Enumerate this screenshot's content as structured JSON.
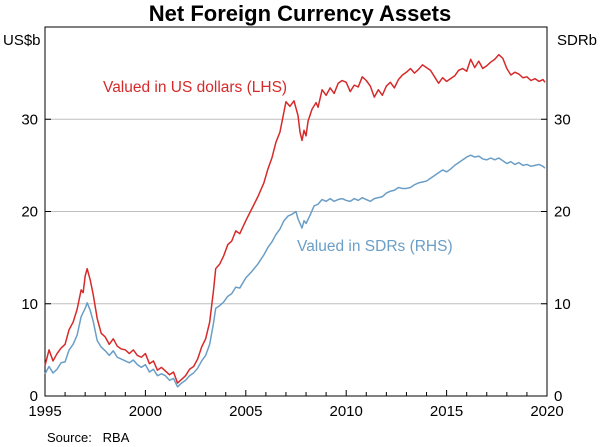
{
  "chart_data": {
    "type": "line",
    "title": "Net Foreign Currency Assets",
    "left_unit": "US$b",
    "right_unit": "SDRb",
    "source": "Source:   RBA",
    "x_range": [
      1995,
      2020
    ],
    "x_ticks": [
      1995,
      2000,
      2005,
      2010,
      2015,
      2020
    ],
    "y_left_range": [
      0,
      40
    ],
    "y_left_ticks": [
      0,
      10,
      20,
      30
    ],
    "y_right_range": [
      0,
      40
    ],
    "y_right_ticks": [
      0,
      10,
      20,
      30
    ],
    "grid": "horizontal",
    "colors": {
      "usd": "#d62a2a",
      "sdr": "#6a9ec7",
      "grid": "#bfbfbf"
    },
    "series": [
      {
        "name": "Valued in US dollars (LHS)",
        "axis": "left",
        "color": "#d62a2a",
        "points": [
          [
            1995.0,
            3.3
          ],
          [
            1995.2,
            5.0
          ],
          [
            1995.4,
            3.8
          ],
          [
            1995.6,
            4.6
          ],
          [
            1995.8,
            5.2
          ],
          [
            1996.0,
            5.6
          ],
          [
            1996.2,
            7.2
          ],
          [
            1996.4,
            8.0
          ],
          [
            1996.6,
            9.4
          ],
          [
            1996.8,
            11.5
          ],
          [
            1996.9,
            11.2
          ],
          [
            1997.0,
            13.0
          ],
          [
            1997.1,
            13.8
          ],
          [
            1997.25,
            12.6
          ],
          [
            1997.4,
            11.0
          ],
          [
            1997.6,
            8.4
          ],
          [
            1997.8,
            6.8
          ],
          [
            1998.0,
            6.4
          ],
          [
            1998.2,
            5.6
          ],
          [
            1998.4,
            6.2
          ],
          [
            1998.6,
            5.4
          ],
          [
            1998.8,
            5.1
          ],
          [
            1999.0,
            5.0
          ],
          [
            1999.2,
            4.6
          ],
          [
            1999.4,
            5.0
          ],
          [
            1999.6,
            4.4
          ],
          [
            1999.8,
            4.2
          ],
          [
            2000.0,
            4.6
          ],
          [
            2000.2,
            3.5
          ],
          [
            2000.4,
            3.8
          ],
          [
            2000.6,
            2.8
          ],
          [
            2000.8,
            3.1
          ],
          [
            2001.0,
            2.7
          ],
          [
            2001.2,
            2.3
          ],
          [
            2001.4,
            2.6
          ],
          [
            2001.6,
            1.4
          ],
          [
            2001.8,
            1.8
          ],
          [
            2002.0,
            2.2
          ],
          [
            2002.2,
            2.9
          ],
          [
            2002.4,
            3.2
          ],
          [
            2002.6,
            4.0
          ],
          [
            2002.8,
            5.3
          ],
          [
            2003.0,
            6.2
          ],
          [
            2003.2,
            8.0
          ],
          [
            2003.4,
            11.6
          ],
          [
            2003.5,
            13.8
          ],
          [
            2003.7,
            14.3
          ],
          [
            2003.9,
            15.2
          ],
          [
            2004.1,
            16.4
          ],
          [
            2004.3,
            16.8
          ],
          [
            2004.5,
            17.9
          ],
          [
            2004.7,
            17.6
          ],
          [
            2005.0,
            19.0
          ],
          [
            2005.3,
            20.3
          ],
          [
            2005.6,
            21.6
          ],
          [
            2005.9,
            23.1
          ],
          [
            2006.1,
            24.6
          ],
          [
            2006.3,
            25.8
          ],
          [
            2006.5,
            27.5
          ],
          [
            2006.7,
            28.6
          ],
          [
            2006.9,
            30.8
          ],
          [
            2007.0,
            31.9
          ],
          [
            2007.2,
            31.4
          ],
          [
            2007.4,
            32.0
          ],
          [
            2007.6,
            30.4
          ],
          [
            2007.7,
            28.6
          ],
          [
            2007.8,
            27.7
          ],
          [
            2007.9,
            28.8
          ],
          [
            2008.0,
            28.2
          ],
          [
            2008.1,
            29.8
          ],
          [
            2008.3,
            31.1
          ],
          [
            2008.5,
            31.8
          ],
          [
            2008.6,
            31.3
          ],
          [
            2008.8,
            33.2
          ],
          [
            2009.0,
            32.6
          ],
          [
            2009.2,
            33.4
          ],
          [
            2009.4,
            32.8
          ],
          [
            2009.6,
            33.9
          ],
          [
            2009.8,
            34.2
          ],
          [
            2010.0,
            34.0
          ],
          [
            2010.2,
            33.0
          ],
          [
            2010.4,
            33.7
          ],
          [
            2010.6,
            33.5
          ],
          [
            2010.8,
            34.6
          ],
          [
            2011.0,
            34.2
          ],
          [
            2011.2,
            33.6
          ],
          [
            2011.4,
            32.4
          ],
          [
            2011.6,
            33.2
          ],
          [
            2011.8,
            32.6
          ],
          [
            2012.0,
            33.6
          ],
          [
            2012.2,
            34.0
          ],
          [
            2012.4,
            33.4
          ],
          [
            2012.6,
            34.3
          ],
          [
            2012.8,
            34.8
          ],
          [
            2013.0,
            35.1
          ],
          [
            2013.2,
            35.5
          ],
          [
            2013.4,
            35.0
          ],
          [
            2013.6,
            35.4
          ],
          [
            2013.8,
            35.9
          ],
          [
            2014.0,
            35.6
          ],
          [
            2014.2,
            35.3
          ],
          [
            2014.4,
            34.6
          ],
          [
            2014.6,
            33.9
          ],
          [
            2014.8,
            34.5
          ],
          [
            2015.0,
            34.1
          ],
          [
            2015.2,
            34.4
          ],
          [
            2015.4,
            34.7
          ],
          [
            2015.6,
            35.3
          ],
          [
            2015.8,
            35.5
          ],
          [
            2016.0,
            35.2
          ],
          [
            2016.2,
            36.5
          ],
          [
            2016.4,
            35.6
          ],
          [
            2016.6,
            36.3
          ],
          [
            2016.8,
            35.5
          ],
          [
            2017.0,
            35.8
          ],
          [
            2017.2,
            36.2
          ],
          [
            2017.4,
            36.5
          ],
          [
            2017.6,
            37.0
          ],
          [
            2017.8,
            36.6
          ],
          [
            2018.0,
            35.5
          ],
          [
            2018.2,
            34.8
          ],
          [
            2018.4,
            35.1
          ],
          [
            2018.6,
            34.9
          ],
          [
            2018.8,
            34.5
          ],
          [
            2019.0,
            34.6
          ],
          [
            2019.2,
            34.2
          ],
          [
            2019.4,
            34.4
          ],
          [
            2019.6,
            34.1
          ],
          [
            2019.8,
            34.3
          ],
          [
            2019.9,
            34.0
          ]
        ]
      },
      {
        "name": "Valued in SDRs (RHS)",
        "axis": "right",
        "color": "#6a9ec7",
        "points": [
          [
            1995.0,
            2.4
          ],
          [
            1995.2,
            3.2
          ],
          [
            1995.4,
            2.5
          ],
          [
            1995.6,
            2.9
          ],
          [
            1995.8,
            3.6
          ],
          [
            1996.0,
            3.7
          ],
          [
            1996.2,
            5.0
          ],
          [
            1996.4,
            5.6
          ],
          [
            1996.6,
            6.6
          ],
          [
            1996.8,
            8.6
          ],
          [
            1997.0,
            9.5
          ],
          [
            1997.1,
            10.1
          ],
          [
            1997.25,
            9.3
          ],
          [
            1997.4,
            8.1
          ],
          [
            1997.6,
            6.0
          ],
          [
            1997.8,
            5.3
          ],
          [
            1998.0,
            4.9
          ],
          [
            1998.2,
            4.4
          ],
          [
            1998.4,
            4.9
          ],
          [
            1998.6,
            4.2
          ],
          [
            1998.8,
            4.0
          ],
          [
            1999.0,
            3.8
          ],
          [
            1999.2,
            3.6
          ],
          [
            1999.4,
            3.9
          ],
          [
            1999.6,
            3.4
          ],
          [
            1999.8,
            3.1
          ],
          [
            2000.0,
            3.4
          ],
          [
            2000.2,
            2.6
          ],
          [
            2000.4,
            2.9
          ],
          [
            2000.6,
            2.2
          ],
          [
            2000.8,
            2.4
          ],
          [
            2001.0,
            2.2
          ],
          [
            2001.2,
            1.7
          ],
          [
            2001.4,
            1.9
          ],
          [
            2001.6,
            1.0
          ],
          [
            2001.8,
            1.4
          ],
          [
            2002.0,
            1.7
          ],
          [
            2002.2,
            2.2
          ],
          [
            2002.4,
            2.5
          ],
          [
            2002.6,
            3.0
          ],
          [
            2002.8,
            3.8
          ],
          [
            2003.0,
            4.4
          ],
          [
            2003.2,
            5.6
          ],
          [
            2003.4,
            8.0
          ],
          [
            2003.5,
            9.5
          ],
          [
            2003.7,
            9.8
          ],
          [
            2003.9,
            10.2
          ],
          [
            2004.1,
            10.8
          ],
          [
            2004.3,
            11.1
          ],
          [
            2004.5,
            11.8
          ],
          [
            2004.7,
            11.7
          ],
          [
            2005.0,
            12.8
          ],
          [
            2005.3,
            13.5
          ],
          [
            2005.6,
            14.3
          ],
          [
            2005.9,
            15.3
          ],
          [
            2006.1,
            16.1
          ],
          [
            2006.3,
            16.7
          ],
          [
            2006.5,
            17.5
          ],
          [
            2006.7,
            18.1
          ],
          [
            2006.9,
            19.0
          ],
          [
            2007.1,
            19.5
          ],
          [
            2007.3,
            19.7
          ],
          [
            2007.5,
            20.0
          ],
          [
            2007.6,
            19.2
          ],
          [
            2007.8,
            18.2
          ],
          [
            2007.9,
            19.0
          ],
          [
            2008.0,
            18.7
          ],
          [
            2008.2,
            19.6
          ],
          [
            2008.4,
            20.6
          ],
          [
            2008.6,
            20.8
          ],
          [
            2008.8,
            21.3
          ],
          [
            2009.0,
            21.1
          ],
          [
            2009.2,
            21.4
          ],
          [
            2009.4,
            21.1
          ],
          [
            2009.6,
            21.3
          ],
          [
            2009.8,
            21.4
          ],
          [
            2010.0,
            21.2
          ],
          [
            2010.2,
            21.1
          ],
          [
            2010.4,
            21.4
          ],
          [
            2010.6,
            21.2
          ],
          [
            2010.8,
            21.5
          ],
          [
            2011.0,
            21.3
          ],
          [
            2011.2,
            21.1
          ],
          [
            2011.4,
            21.4
          ],
          [
            2011.6,
            21.5
          ],
          [
            2011.8,
            21.6
          ],
          [
            2012.0,
            22.0
          ],
          [
            2012.2,
            22.2
          ],
          [
            2012.4,
            22.3
          ],
          [
            2012.6,
            22.6
          ],
          [
            2012.8,
            22.5
          ],
          [
            2013.0,
            22.5
          ],
          [
            2013.2,
            22.6
          ],
          [
            2013.4,
            22.9
          ],
          [
            2013.6,
            23.1
          ],
          [
            2013.8,
            23.2
          ],
          [
            2014.0,
            23.3
          ],
          [
            2014.2,
            23.6
          ],
          [
            2014.4,
            23.9
          ],
          [
            2014.6,
            24.2
          ],
          [
            2014.8,
            24.5
          ],
          [
            2015.0,
            24.3
          ],
          [
            2015.2,
            24.6
          ],
          [
            2015.4,
            25.0
          ],
          [
            2015.6,
            25.3
          ],
          [
            2015.8,
            25.6
          ],
          [
            2016.0,
            25.9
          ],
          [
            2016.2,
            26.1
          ],
          [
            2016.4,
            25.9
          ],
          [
            2016.6,
            26.0
          ],
          [
            2016.8,
            25.7
          ],
          [
            2017.0,
            25.6
          ],
          [
            2017.2,
            25.8
          ],
          [
            2017.4,
            25.6
          ],
          [
            2017.6,
            25.8
          ],
          [
            2017.8,
            25.5
          ],
          [
            2018.0,
            25.2
          ],
          [
            2018.2,
            25.4
          ],
          [
            2018.4,
            25.1
          ],
          [
            2018.6,
            25.3
          ],
          [
            2018.8,
            25.0
          ],
          [
            2019.0,
            25.1
          ],
          [
            2019.2,
            24.9
          ],
          [
            2019.4,
            25.0
          ],
          [
            2019.6,
            25.1
          ],
          [
            2019.8,
            24.9
          ],
          [
            2019.9,
            24.7
          ]
        ]
      }
    ]
  }
}
